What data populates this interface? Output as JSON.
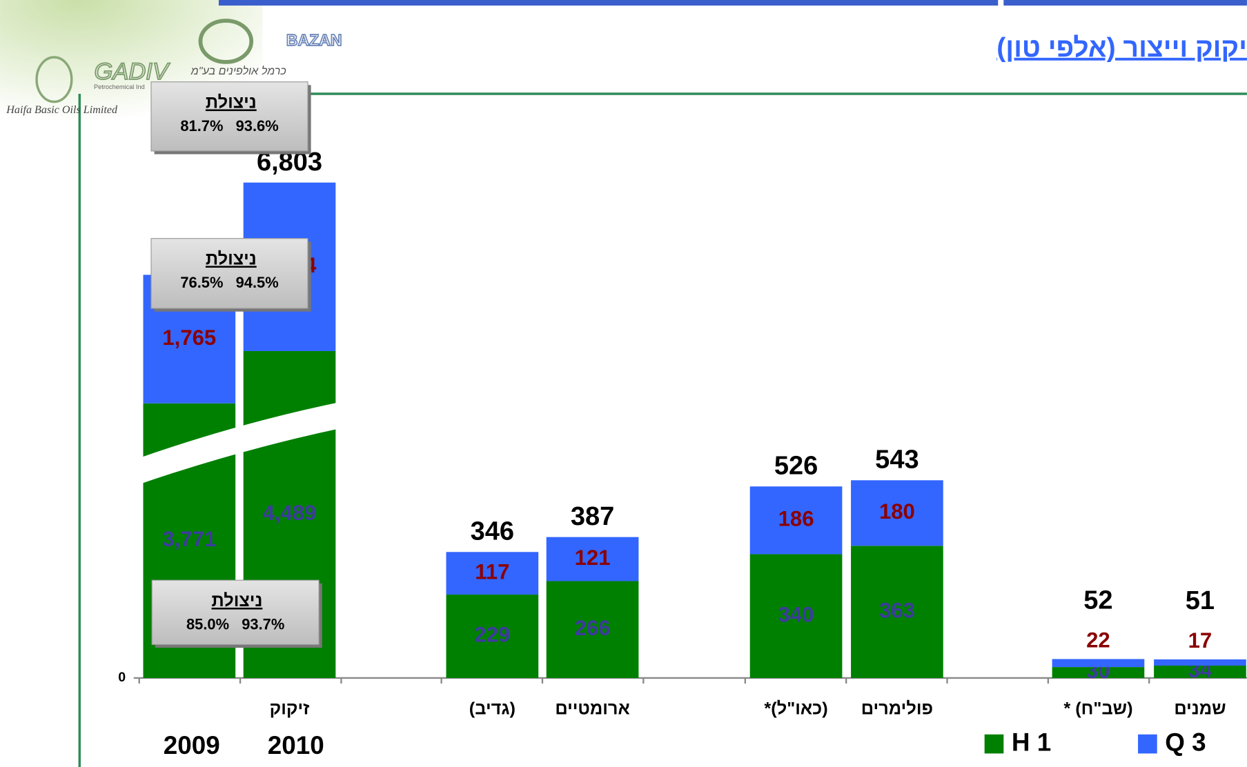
{
  "header": {
    "title": "יקוק וייצור (אלפי טון)",
    "logos": [
      "BAZAN",
      "כרמל אולפינים בע\"מ",
      "GADIV",
      "Petrochemical Ind",
      "Haifa Basic Oils Limited"
    ]
  },
  "annotations": [
    {
      "title": "ניצולת",
      "text": "81.7%   93.6%"
    },
    {
      "title": "ניצולת",
      "text": "76.5%   94.5%"
    },
    {
      "title": "ניצולת",
      "text": "85.0%   93.7%"
    }
  ],
  "legend": [
    "H 1",
    "Q 3"
  ],
  "chart_data": [
    {
      "type": "stacked_bar",
      "categories": [
        null,
        "זיקוק"
      ],
      "years": [
        "2009",
        "2010"
      ],
      "ylim": [
        0,
        8000
      ],
      "yticks": [
        0
      ],
      "axis_break": true,
      "series": [
        {
          "name": "H 1",
          "color": "#008000",
          "label_color": "#3c3c9c",
          "values": [
            3771,
            4489
          ],
          "value_labels": [
            "3,771",
            "4,489"
          ]
        },
        {
          "name": "Q 3",
          "color": "#3366ff",
          "label_color": "#8b0000",
          "values": [
            1765,
            2314
          ],
          "value_labels": [
            "1,765",
            "2.314"
          ]
        }
      ],
      "totals": {
        "values": [
          5536,
          6803
        ],
        "value_labels": [
          "5,536",
          "6,803"
        ]
      }
    },
    {
      "type": "stacked_bar",
      "categories": [
        "(גדיב)",
        "ארומטיים",
        "(כאו\"ל)*",
        "פולימרים",
        "(שב\"ח) *",
        "שמנים"
      ],
      "ylim": [
        0,
        1600
      ],
      "series": [
        {
          "name": "H 1",
          "color": "#008000",
          "label_color": "#3c3c9c",
          "values": [
            229,
            266,
            340,
            363,
            30,
            34
          ]
        },
        {
          "name": "Q 3",
          "color": "#3366ff",
          "label_color": "#8b0000",
          "values": [
            117,
            121,
            186,
            180,
            22,
            17
          ]
        }
      ],
      "totals": {
        "values": [
          346,
          387,
          526,
          543,
          52,
          51
        ]
      }
    }
  ]
}
